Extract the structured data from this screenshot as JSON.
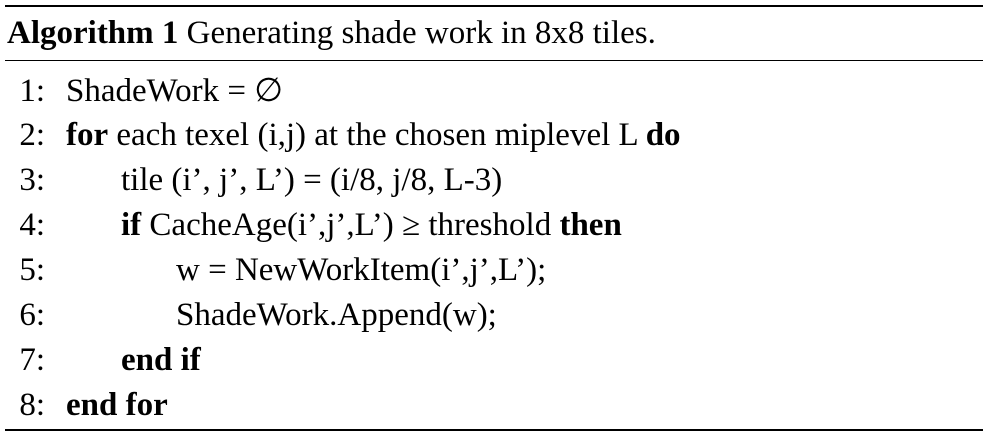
{
  "algorithm": {
    "label": "Algorithm 1",
    "title": "Generating shade work in 8x8 tiles.",
    "lines": [
      {
        "num": "1:",
        "text": "ShadeWork = ∅"
      },
      {
        "num": "2:",
        "kw1": "for",
        "text": " each texel (i,j) at the chosen miplevel L ",
        "kw2": "do"
      },
      {
        "num": "3:",
        "text": "tile (i’, j’, L’) = (i/8, j/8, L-3)"
      },
      {
        "num": "4:",
        "kw1": "if",
        "text": " CacheAge(i’,j’,L’) ≥ threshold ",
        "kw2": "then"
      },
      {
        "num": "5:",
        "text": "w = NewWorkItem(i’,j’,L’);"
      },
      {
        "num": "6:",
        "text": "ShadeWork.Append(w);"
      },
      {
        "num": "7:",
        "kw1": "end if"
      },
      {
        "num": "8:",
        "kw1": "end for"
      }
    ]
  }
}
